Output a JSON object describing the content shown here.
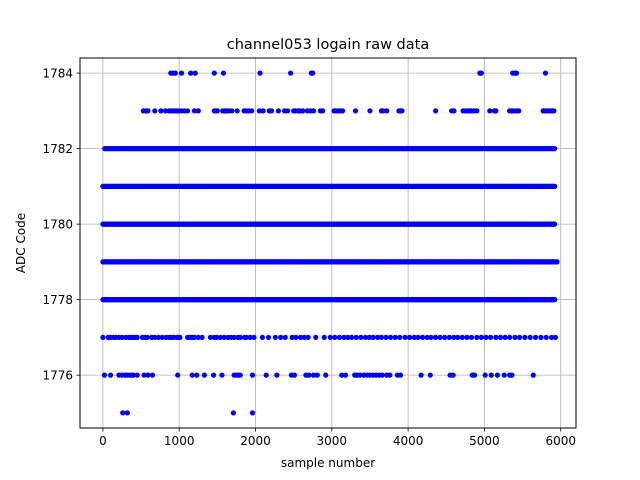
{
  "chart_data": {
    "type": "scatter",
    "title": "channel053 logain raw data",
    "xlabel": "sample number",
    "ylabel": "ADC Code",
    "xlim": [
      -300,
      6200
    ],
    "ylim": [
      1774.6,
      1784.4
    ],
    "x_ticks": [
      0,
      1000,
      2000,
      3000,
      4000,
      5000,
      6000
    ],
    "x_tick_labels": [
      "0",
      "1000",
      "2000",
      "3000",
      "4000",
      "5000",
      "6000"
    ],
    "y_ticks": [
      1776,
      1778,
      1780,
      1782,
      1784
    ],
    "y_tick_labels": [
      "1776",
      "1778",
      "1780",
      "1782",
      "1784"
    ],
    "grid": true,
    "marker_color": "#0000ff",
    "series": [
      {
        "points": [
          {
            "y": 1784,
            "x": [
              890,
              920,
              950,
              1030,
              1150,
              1210,
              1460,
              1580,
              2060,
              2460,
              2730,
              2750,
              4940,
              4960,
              5370,
              5400,
              5420,
              5800
            ]
          },
          {
            "y": 1783,
            "x": [
              530,
              560,
              590,
              680,
              760,
              820,
              870,
              900,
              930,
              960,
              990,
              1030,
              1070,
              1110,
              1200,
              1250,
              1460,
              1480,
              1500,
              1570,
              1600,
              1620,
              1650,
              1690,
              1760,
              1850,
              1880,
              1910,
              1950,
              2050,
              2100,
              2180,
              2210,
              2300,
              2380,
              2420,
              2500,
              2520,
              2560,
              2580,
              2620,
              2680,
              2720,
              2760,
              2850,
              2880,
              3030,
              3050,
              3080,
              3110,
              3140,
              3310,
              3500,
              3650,
              3670,
              3720,
              3880,
              3900,
              3920,
              4360,
              4570,
              4600,
              4720,
              4750,
              4780,
              4810,
              4830,
              4860,
              4900,
              5070,
              5130,
              5150,
              5330,
              5360,
              5380,
              5420,
              5450,
              5770,
              5800,
              5830,
              5860,
              5890,
              5910
            ]
          },
          {
            "y": 1777,
            "x": [
              0,
              70,
              100,
              140,
              170,
              210,
              250,
              300,
              340,
              370,
              390,
              420,
              450,
              520,
              550,
              580,
              640,
              680,
              730,
              780,
              830,
              870,
              900,
              930,
              970,
              1000,
              1010,
              1110,
              1140,
              1170,
              1200,
              1250,
              1300,
              1410,
              1460,
              1490,
              1540,
              1590,
              1640,
              1680,
              1720,
              1770,
              1800,
              1860,
              1880,
              1930,
              1980,
              2090,
              2170,
              2260,
              2330,
              2390,
              2480,
              2530,
              2590,
              2640,
              2690,
              2790,
              2900,
              2980,
              3040,
              3100,
              3160,
              3210,
              3260,
              3320,
              3380,
              3440,
              3490,
              3540,
              3600,
              3650,
              3710,
              3770,
              3830,
              3890,
              3960,
              4020,
              4080,
              4130,
              4190,
              4250,
              4300,
              4360,
              4420,
              4480,
              4540,
              4600,
              4650,
              4710,
              4770,
              4830,
              4900,
              4960,
              5020,
              5080,
              5150,
              5210,
              5270,
              5330,
              5400,
              5460,
              5530,
              5600,
              5670,
              5740,
              5810,
              5880,
              5930
            ]
          },
          {
            "y": 1776,
            "x": [
              20,
              100,
              210,
              250,
              290,
              320,
              350,
              380,
              400,
              450,
              540,
              590,
              650,
              980,
              1170,
              1230,
              1330,
              1450,
              1560,
              1720,
              1750,
              1780,
              1800,
              1960,
              2140,
              2280,
              2470,
              2510,
              2660,
              2700,
              2760,
              2810,
              2920,
              3130,
              3180,
              3300,
              3330,
              3370,
              3420,
              3460,
              3500,
              3540,
              3580,
              3620,
              3660,
              3720,
              3760,
              3860,
              3900,
              4170,
              4290,
              4550,
              4590,
              4840,
              4870,
              5010,
              5090,
              5170,
              5260,
              5330,
              5360,
              5640
            ]
          },
          {
            "y": 1775,
            "x": [
              260,
              320,
              1710,
              1960
            ]
          }
        ]
      }
    ],
    "dense_rows": [
      {
        "y": 1782,
        "x_range": [
          0,
          5920
        ],
        "step": 19,
        "from": 25
      },
      {
        "y": 1781,
        "x_range": [
          0,
          5920
        ],
        "step": 10,
        "from": 0
      },
      {
        "y": 1780,
        "x_range": [
          0,
          5920
        ],
        "step": 9,
        "from": 0
      },
      {
        "y": 1779,
        "x_range": [
          0,
          5950
        ],
        "step": 9,
        "from": 0
      },
      {
        "y": 1778,
        "x_range": [
          0,
          5920
        ],
        "step": 10,
        "from": 0
      }
    ]
  }
}
